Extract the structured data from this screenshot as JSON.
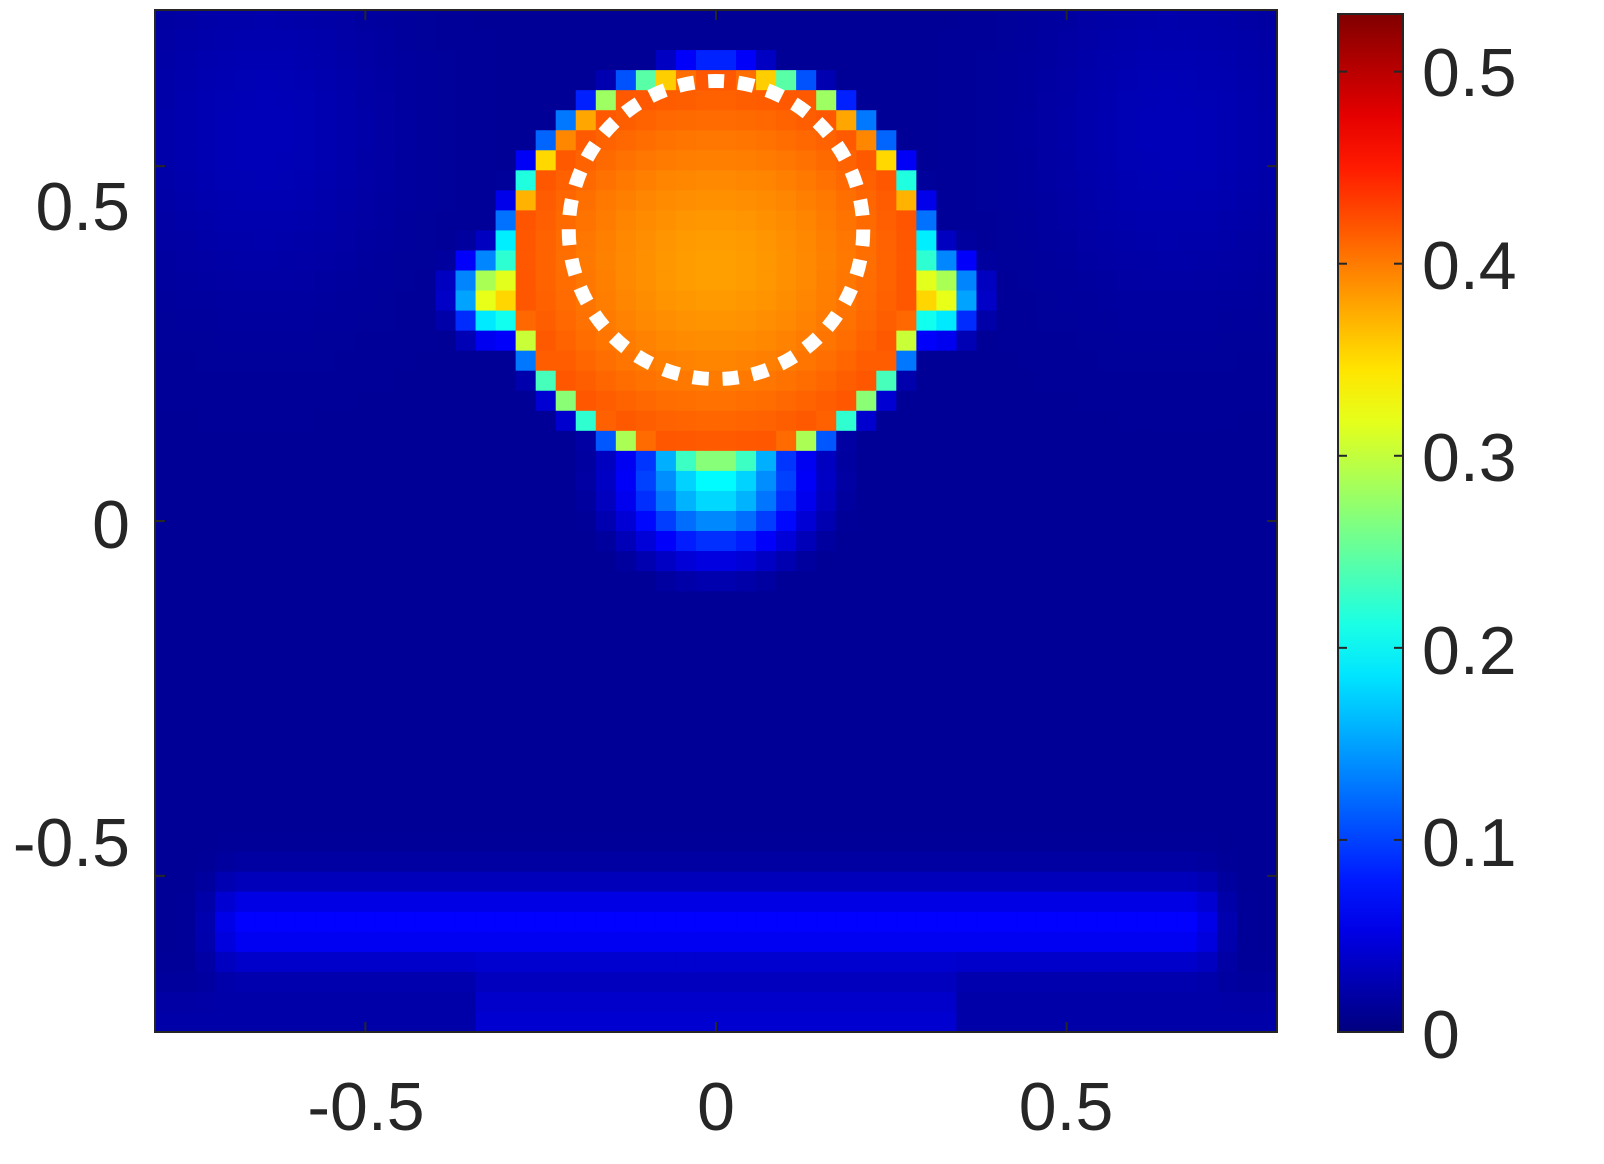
{
  "chart_data": {
    "type": "heatmap",
    "title": "",
    "xlabel": "",
    "ylabel": "",
    "xlim": [
      -0.8,
      0.8
    ],
    "ylim": [
      -0.72,
      0.72
    ],
    "clim": [
      0,
      0.53
    ],
    "colormap": "jet",
    "grid": false,
    "x_ticks": [
      -0.5,
      0,
      0.5
    ],
    "x_tick_labels": [
      "-0.5",
      "0",
      "0.5"
    ],
    "y_ticks": [
      -0.5,
      0,
      0.5
    ],
    "y_tick_labels": [
      "-0.5",
      "0",
      "0.5"
    ],
    "colorbar": {
      "ticks": [
        0,
        0.1,
        0.2,
        0.3,
        0.4,
        0.5
      ],
      "tick_labels": [
        "0",
        "0.1",
        "0.2",
        "0.3",
        "0.4",
        "0.5"
      ],
      "placement": "right"
    },
    "overlay": {
      "shape": "dotted circle",
      "color": "#ffffff",
      "center": [
        0,
        0.41
      ],
      "radius": 0.21
    },
    "field_features": [
      {
        "kind": "main-lobe",
        "center": [
          0,
          0.36
        ],
        "peak": 0.38,
        "rim": 0.42,
        "rx": 0.28,
        "ry": 0.26
      },
      {
        "kind": "side-lobes",
        "x": [
          -0.31,
          0.31
        ],
        "y": 0.32,
        "peak": 0.38
      },
      {
        "kind": "lower-tail",
        "center": [
          0,
          0.06
        ],
        "peak": 0.2
      },
      {
        "kind": "background-ring",
        "y": -0.57,
        "peak": 0.1
      }
    ]
  }
}
